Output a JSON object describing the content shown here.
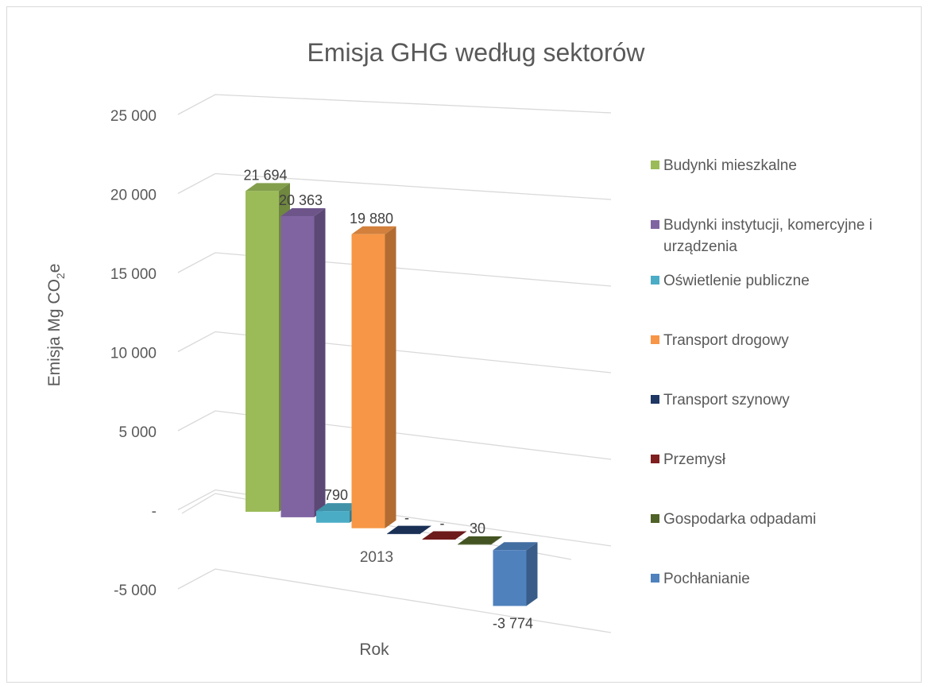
{
  "chart_data": {
    "type": "bar",
    "title": "Emisja GHG według sektorów",
    "ylabel": "Emisja Mg CO",
    "ylabel_sub": "2",
    "ylabel_suffix": "e",
    "xlabel": "Rok",
    "categories": [
      "2013"
    ],
    "ylim": [
      -5000,
      25000
    ],
    "y_ticks": [
      {
        "value": 25000,
        "label": "25 000"
      },
      {
        "value": 20000,
        "label": "20 000"
      },
      {
        "value": 15000,
        "label": "15 000"
      },
      {
        "value": 10000,
        "label": "10 000"
      },
      {
        "value": 5000,
        "label": "5 000"
      },
      {
        "value": 0,
        "label": "-"
      },
      {
        "value": -5000,
        "label": "-5 000"
      }
    ],
    "grid": true,
    "legend_position": "right",
    "series": [
      {
        "name": "Budynki mieszkalne",
        "values": [
          21694
        ],
        "label": "21 694",
        "color": "#9bbb59"
      },
      {
        "name": "Budynki instytucji, komercyjne i urządzenia",
        "values": [
          20363
        ],
        "label": "20 363",
        "color": "#8064a2"
      },
      {
        "name": "Oświetlenie publiczne",
        "values": [
          790
        ],
        "label": "790",
        "color": "#4bacc6"
      },
      {
        "name": "Transport drogowy",
        "values": [
          19880
        ],
        "label": "19 880",
        "color": "#f79646"
      },
      {
        "name": "Transport szynowy",
        "values": [
          0
        ],
        "label": "-",
        "color": "#1f3864"
      },
      {
        "name": "Przemysł",
        "values": [
          0
        ],
        "label": "-",
        "color": "#7f1f1f"
      },
      {
        "name": "Gospodarka odpadami",
        "values": [
          30
        ],
        "label": "30",
        "color": "#4f6228"
      },
      {
        "name": "Pochłanianie",
        "values": [
          -3774
        ],
        "label": "-3 774",
        "color": "#4f81bd"
      }
    ]
  }
}
